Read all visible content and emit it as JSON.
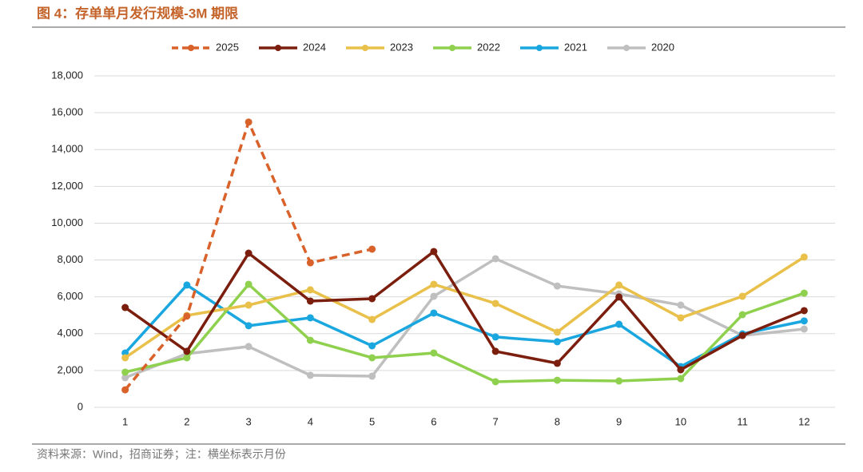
{
  "chart_data": {
    "type": "line",
    "title": "图 4：存单单月发行规模-3M 期限",
    "source": "资料来源：Wind，招商证券；注：横坐标表示月份",
    "categories": [
      "1",
      "2",
      "3",
      "4",
      "5",
      "6",
      "7",
      "8",
      "9",
      "10",
      "11",
      "12"
    ],
    "series": [
      {
        "name": "2025",
        "color": "#d9622b",
        "dashed": true,
        "values": [
          950,
          4950,
          15490,
          7850,
          8590,
          null,
          null,
          null,
          null,
          null,
          null,
          null
        ]
      },
      {
        "name": "2024",
        "color": "#7b1e0e",
        "values": [
          5420,
          3040,
          8370,
          5770,
          5900,
          8460,
          3040,
          2390,
          5990,
          2040,
          3900,
          5250
        ]
      },
      {
        "name": "2023",
        "color": "#e8c04a",
        "values": [
          2690,
          4990,
          5550,
          6380,
          4770,
          6680,
          5640,
          4080,
          6640,
          4860,
          6030,
          8160
        ]
      },
      {
        "name": "2022",
        "color": "#8fd14f",
        "values": [
          1910,
          2690,
          6680,
          3640,
          2690,
          2950,
          1390,
          1470,
          1430,
          1560,
          5030,
          6200
        ]
      },
      {
        "name": "2021",
        "color": "#1aa7e0",
        "values": [
          2950,
          6640,
          4430,
          4860,
          3340,
          5120,
          3820,
          3560,
          4510,
          2210,
          3990,
          4690
        ]
      },
      {
        "name": "2020",
        "color": "#bfbfbf",
        "values": [
          1610,
          2910,
          3300,
          1740,
          1690,
          6030,
          8070,
          6590,
          6160,
          5550,
          3900,
          4250
        ]
      }
    ],
    "ylim": [
      0,
      18000
    ],
    "yticks": [
      0,
      {
        "value": 2000,
        "label": "2,000"
      },
      {
        "value": 4000,
        "label": "4,000"
      },
      {
        "value": 6000,
        "label": "6,000"
      },
      {
        "value": 8000,
        "label": "8,000"
      },
      {
        "value": 10000,
        "label": "10,000"
      },
      {
        "value": 12000,
        "label": "12,000"
      },
      {
        "value": 14000,
        "label": "14,000"
      },
      {
        "value": 16000,
        "label": "16,000"
      },
      {
        "value": 18000,
        "label": "18,000"
      }
    ],
    "grid": true,
    "legend": "top"
  }
}
